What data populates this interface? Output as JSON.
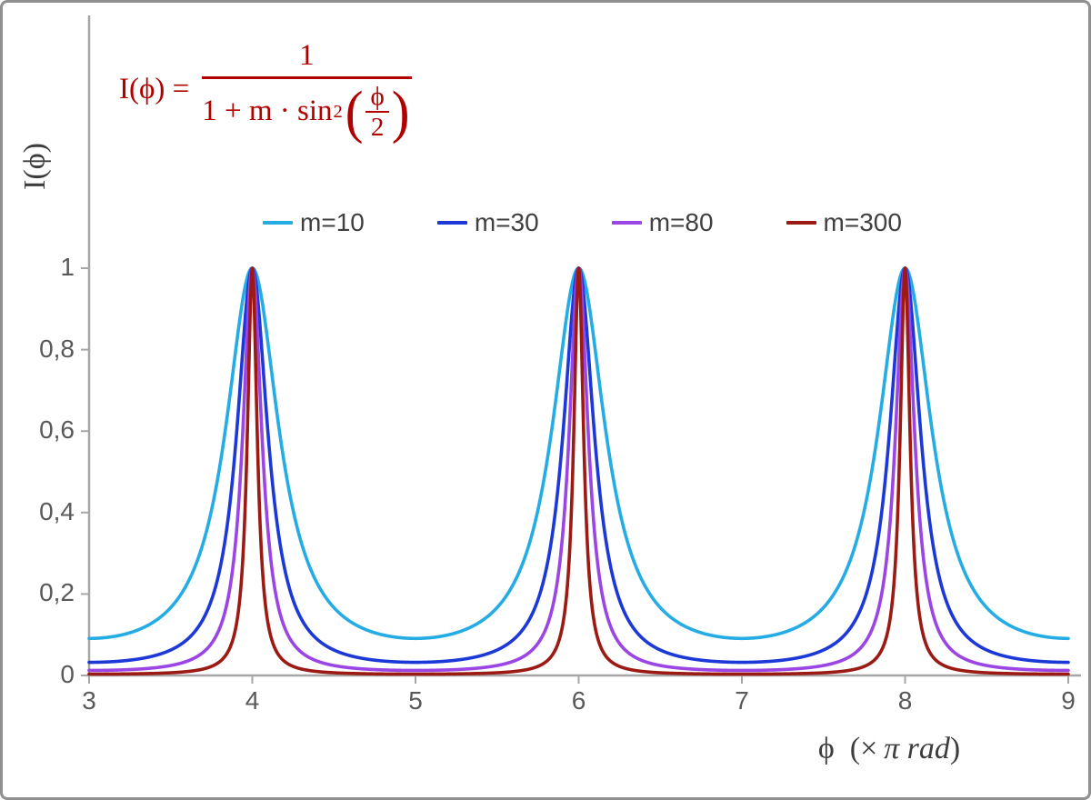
{
  "formula": {
    "lhs": "I(ϕ) =",
    "numerator": "1",
    "den_prefix": "1 + m · sin",
    "den_sup": "2",
    "lparen": "(",
    "rparen": ")",
    "inner_num": "ϕ",
    "inner_den": "2",
    "color": "#b00000"
  },
  "y_axis": {
    "title": "I(ϕ)"
  },
  "x_axis": {
    "sym": "ϕ",
    "pre": " (× ",
    "italic": "π rad",
    "post": ")"
  },
  "chart_data": {
    "type": "line",
    "formula": "I(ϕ) = 1 / (1 + m·sin²(ϕ/2))",
    "x_unit": "π rad",
    "x_range": [
      3,
      9
    ],
    "y_range": [
      0,
      1
    ],
    "x_ticks": [
      3,
      4,
      5,
      6,
      7,
      8,
      9
    ],
    "x_tick_labels": [
      "3",
      "4",
      "5",
      "6",
      "7",
      "8",
      "9"
    ],
    "y_ticks": [
      0,
      0.2,
      0.4,
      0.6,
      0.8,
      1
    ],
    "y_tick_labels": [
      "0",
      "0,2",
      "0,4",
      "0,6",
      "0,8",
      "1"
    ],
    "x_label": "ϕ (× π rad)",
    "y_label": "I(ϕ)",
    "grid": false,
    "legend_position": "top-center",
    "series": [
      {
        "name": "m=10",
        "m": 10,
        "color": "#25ace4"
      },
      {
        "name": "m=30",
        "m": 30,
        "color": "#1c39d8"
      },
      {
        "name": "m=80",
        "m": 80,
        "color": "#9a45e4"
      },
      {
        "name": "m=300",
        "m": 300,
        "color": "#9c1a14"
      }
    ],
    "function": "I(x) = 1 / (1 + m·sin²(x·π/2)), x in units of π rad",
    "peaks_at_x": [
      4,
      6,
      8
    ],
    "axis_color": "#a6a6a6",
    "tick_label_color": "#595959"
  }
}
